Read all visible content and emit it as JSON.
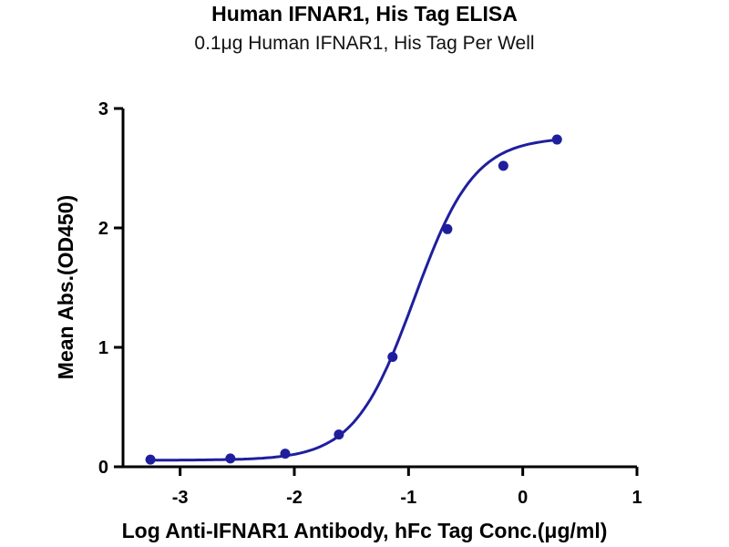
{
  "chart_data": {
    "type": "scatter",
    "title": "Human IFNAR1, His Tag ELISA",
    "subtitle": "0.1μg Human IFNAR1, His Tag Per Well",
    "xlabel": "Log Anti-IFNAR1 Antibody, hFc Tag Conc.(μg/ml)",
    "ylabel": "Mean Abs.(OD450)",
    "xlim": [
      -3.5,
      1
    ],
    "ylim": [
      0,
      3
    ],
    "xticks": [
      "-3",
      "-2",
      "-1",
      "0",
      "1"
    ],
    "yticks": [
      "0",
      "1",
      "2",
      "3"
    ],
    "grid": false,
    "color": "#1f1f9e",
    "series": [
      {
        "x": [
          -3.26,
          -2.56,
          -2.08,
          -1.61,
          -1.14,
          -0.66,
          -0.17,
          0.3
        ],
        "y": [
          0.06,
          0.07,
          0.11,
          0.27,
          0.92,
          1.99,
          2.52,
          2.74
        ],
        "fit": "4PL sigmoid"
      }
    ]
  }
}
